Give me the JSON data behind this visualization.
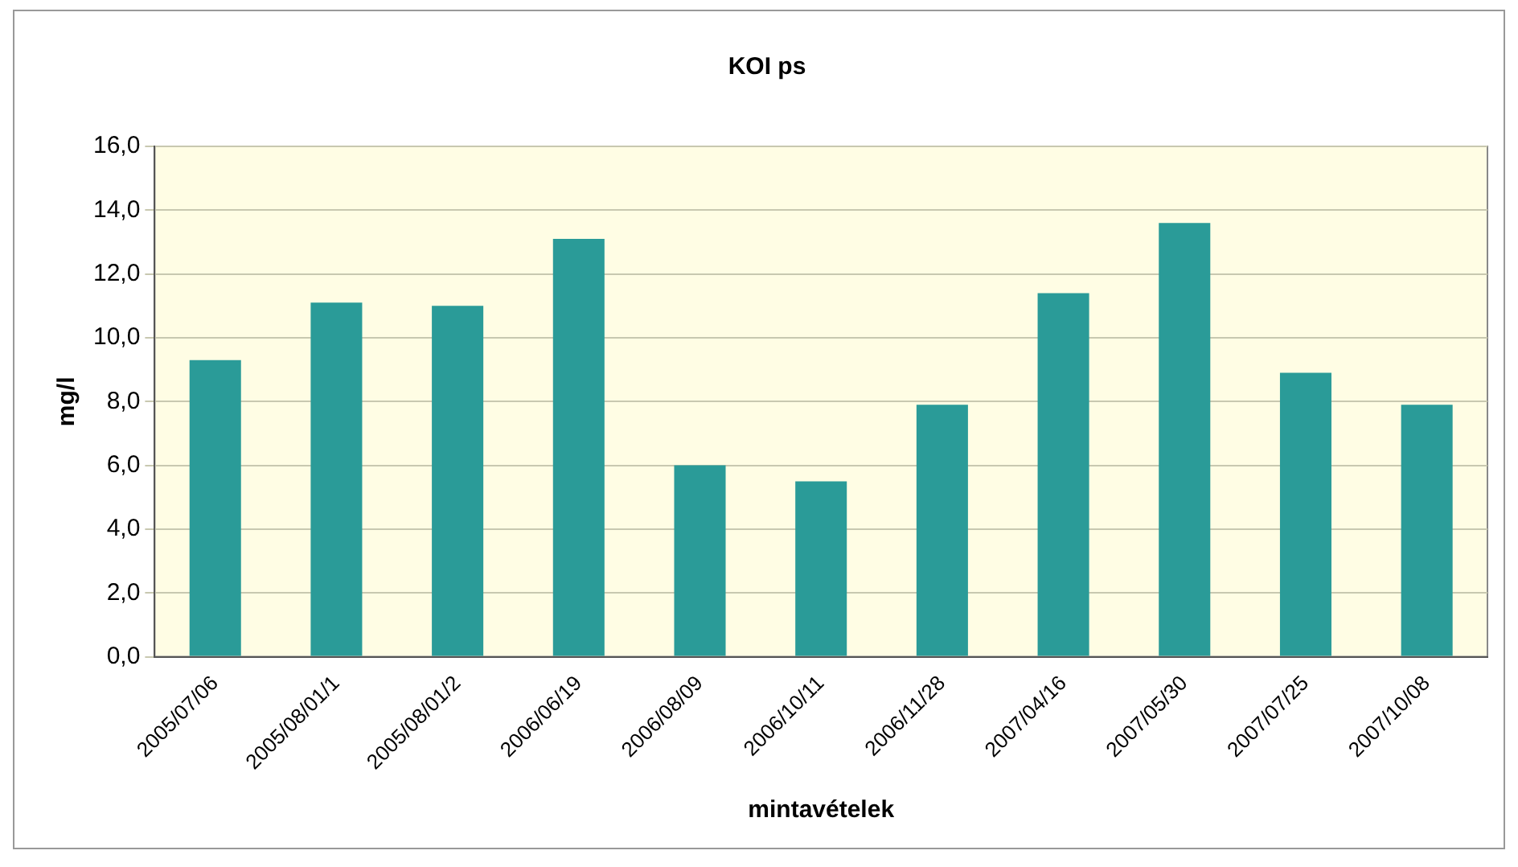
{
  "chart_data": {
    "type": "bar",
    "title": "KOI ps",
    "xlabel": "mintavételek",
    "ylabel": "mg/l",
    "categories": [
      "2005/07/06",
      "2005/08/01/1",
      "2005/08/01/2",
      "2006/06/19",
      "2006/08/09",
      "2006/10/11",
      "2006/11/28",
      "2007/04/16",
      "2007/05/30",
      "2007/07/25",
      "2007/10/08"
    ],
    "values": [
      9.3,
      11.1,
      11.0,
      13.1,
      6.0,
      5.5,
      7.9,
      11.4,
      13.6,
      8.9,
      7.9
    ],
    "color": "#2a9b98",
    "ylim": [
      0,
      16
    ],
    "yticks": [
      {
        "value": 0,
        "label": "0,0"
      },
      {
        "value": 2,
        "label": "2,0"
      },
      {
        "value": 4,
        "label": "4,0"
      },
      {
        "value": 6,
        "label": "6,0"
      },
      {
        "value": 8,
        "label": "8,0"
      },
      {
        "value": 10,
        "label": "10,0"
      },
      {
        "value": 12,
        "label": "12,0"
      },
      {
        "value": 14,
        "label": "14,0"
      },
      {
        "value": 16,
        "label": "16,0"
      }
    ],
    "grid": "y",
    "legend": false
  }
}
